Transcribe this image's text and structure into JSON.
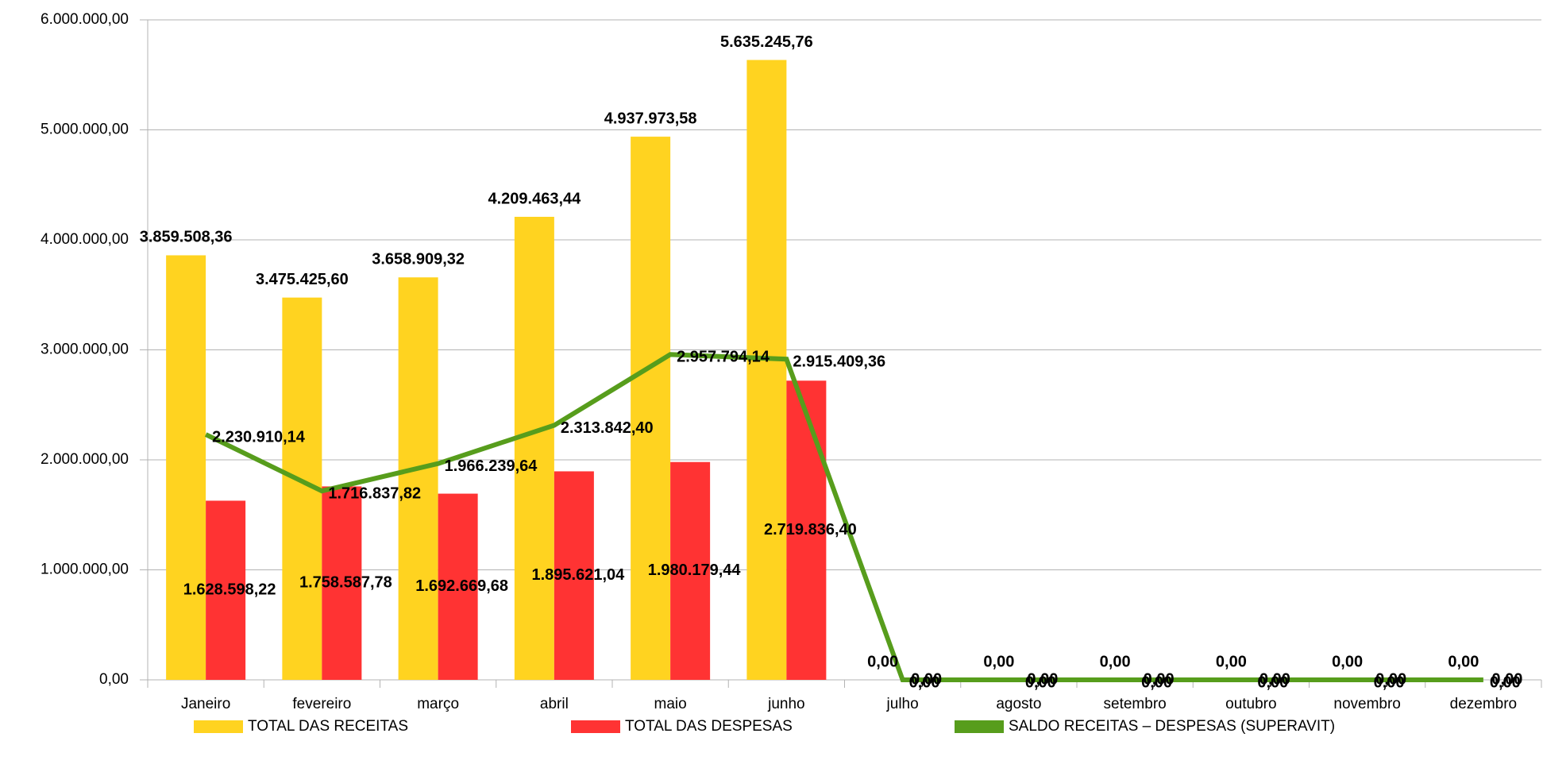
{
  "chart_data": {
    "type": "bar",
    "categories": [
      "Janeiro",
      "fevereiro",
      "março",
      "abril",
      "maio",
      "junho",
      "julho",
      "agosto",
      "setembro",
      "outubro",
      "novembro",
      "dezembro"
    ],
    "series": [
      {
        "name": "TOTAL DAS RECEITAS",
        "type": "bar",
        "color": "#ffd320",
        "values": [
          3859508.36,
          3475425.6,
          3658909.32,
          4209463.44,
          4937973.58,
          5635245.76,
          0,
          0,
          0,
          0,
          0,
          0
        ],
        "value_labels": [
          "3.859.508,36",
          "3.475.425,60",
          "3.658.909,32",
          "4.209.463,44",
          "4.937.973,58",
          "5.635.245,76",
          "0,00",
          "0,00",
          "0,00",
          "0,00",
          "0,00",
          "0,00"
        ]
      },
      {
        "name": "TOTAL DAS DESPESAS",
        "type": "bar",
        "color": "#ff3333",
        "values": [
          1628598.22,
          1758587.78,
          1692669.68,
          1895621.04,
          1980179.44,
          2719836.4,
          0,
          0,
          0,
          0,
          0,
          0
        ],
        "value_labels": [
          "1.628.598,22",
          "1.758.587,78",
          "1.692.669,68",
          "1.895.621,04",
          "1.980.179,44",
          "2.719.836,40",
          "0,00",
          "0,00",
          "0,00",
          "0,00",
          "0,00",
          "0,00"
        ]
      },
      {
        "name": "SALDO RECEITAS – DESPESAS (SUPERAVIT)",
        "type": "line",
        "color": "#579d1c",
        "values": [
          2230910.14,
          1716837.82,
          1966239.64,
          2313842.4,
          2957794.14,
          2915409.36,
          0,
          0,
          0,
          0,
          0,
          0
        ],
        "value_labels": [
          "2.230.910,14",
          "1.716.837,82",
          "1.966.239,64",
          "2.313.842,40",
          "2.957.794,14",
          "2.915.409,36",
          "0,00",
          "0,00",
          "0,00",
          "0,00",
          "0,00",
          "0,00"
        ]
      }
    ],
    "ylim": [
      0,
      6000000
    ],
    "yticks": [
      {
        "value": 0,
        "label": "0,00"
      },
      {
        "value": 1000000,
        "label": "1.000.000,00"
      },
      {
        "value": 2000000,
        "label": "2.000.000,00"
      },
      {
        "value": 3000000,
        "label": "3.000.000,00"
      },
      {
        "value": 4000000,
        "label": "4.000.000,00"
      },
      {
        "value": 5000000,
        "label": "5.000.000,00"
      },
      {
        "value": 6000000,
        "label": "6.000.000,00"
      }
    ],
    "grid": true,
    "legend": "bottom"
  }
}
